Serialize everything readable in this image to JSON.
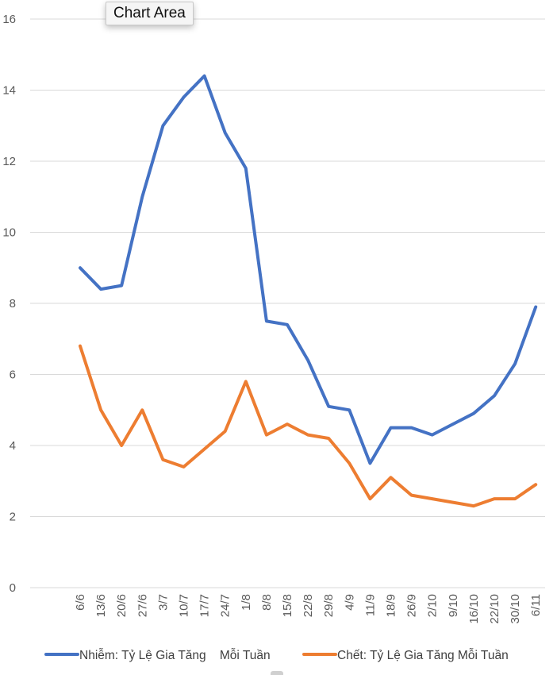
{
  "tooltip": {
    "label": "Chart Area"
  },
  "chart_data": {
    "type": "line",
    "title": "",
    "xlabel": "",
    "ylabel": "",
    "ylim": [
      0,
      16
    ],
    "yticks": [
      0,
      2,
      4,
      6,
      8,
      10,
      12,
      14,
      16
    ],
    "grid": true,
    "legend_position": "bottom",
    "categories": [
      "6/6",
      "13/6",
      "20/6",
      "27/6",
      "3/7",
      "10/7",
      "17/7",
      "24/7",
      "1/8",
      "8/8",
      "15/8",
      "22/8",
      "29/8",
      "4/9",
      "11/9",
      "18/9",
      "26/9",
      "2/10",
      "9/10",
      "16/10",
      "22/10",
      "30/10",
      "6/11"
    ],
    "series": [
      {
        "name": "Nhiễm: Tỷ Lệ Gia Tăng    Mỗi Tuần",
        "color": "#4472C4",
        "values": [
          9.0,
          8.4,
          8.5,
          11.0,
          13.0,
          13.8,
          14.4,
          12.8,
          11.8,
          7.5,
          7.4,
          6.4,
          5.1,
          5.0,
          3.5,
          4.5,
          4.5,
          4.3,
          4.6,
          4.9,
          5.4,
          6.3,
          7.9
        ]
      },
      {
        "name": "Chết: Tỷ Lệ Gia Tăng Mỗi Tuần",
        "color": "#ED7D31",
        "values": [
          6.8,
          5.0,
          4.0,
          5.0,
          3.6,
          3.4,
          3.9,
          4.4,
          5.8,
          4.3,
          4.6,
          4.3,
          4.2,
          3.5,
          2.5,
          3.1,
          2.6,
          2.5,
          2.4,
          2.3,
          2.5,
          2.5,
          2.9
        ]
      }
    ]
  }
}
